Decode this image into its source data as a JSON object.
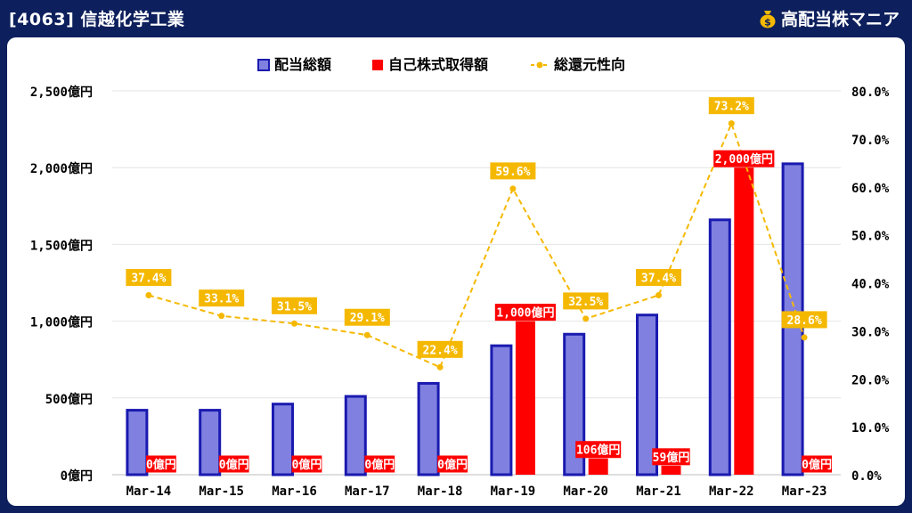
{
  "header": {
    "title": "[4063] 信越化学工業",
    "brand": "高配当株マニア",
    "brand_icon": "money-bag-icon"
  },
  "colors": {
    "header_bg": "#0d1f5c",
    "dividend": "#8080e0",
    "dividend_border": "#1a1ab0",
    "buyback": "#ff0000",
    "payout": "#f5b800",
    "label_text": "#ffffff",
    "axis_text": "#000000"
  },
  "chart_data": {
    "type": "bar",
    "categories": [
      "Mar-14",
      "Mar-15",
      "Mar-16",
      "Mar-17",
      "Mar-18",
      "Mar-19",
      "Mar-20",
      "Mar-21",
      "Mar-22",
      "Mar-23"
    ],
    "series": [
      {
        "name": "配当総額",
        "type": "bar",
        "axis": "left",
        "values": [
          420,
          420,
          460,
          510,
          595,
          840,
          915,
          1040,
          1660,
          2025
        ]
      },
      {
        "name": "自己株式取得額",
        "type": "bar",
        "axis": "left",
        "values": [
          0,
          0,
          0,
          0,
          0,
          1000,
          106,
          59,
          2000,
          0
        ],
        "labels": [
          "0億円",
          "0億円",
          "0億円",
          "0億円",
          "0億円",
          "1,000億円",
          "106億円",
          "59億円",
          "2,000億円",
          "0億円"
        ]
      },
      {
        "name": "総還元性向",
        "type": "line",
        "axis": "right",
        "values": [
          37.4,
          33.1,
          31.5,
          29.1,
          22.4,
          59.6,
          32.5,
          37.4,
          73.2,
          28.6
        ],
        "labels": [
          "37.4%",
          "33.1%",
          "31.5%",
          "29.1%",
          "22.4%",
          "59.6%",
          "32.5%",
          "37.4%",
          "73.2%",
          "28.6%"
        ]
      }
    ],
    "y_left": {
      "min": 0,
      "max": 2500,
      "ticks": [
        "0億円",
        "500億円",
        "1,000億円",
        "1,500億円",
        "2,000億円",
        "2,500億円"
      ]
    },
    "y_right": {
      "min": 0,
      "max": 80,
      "ticks": [
        "0.0%",
        "10.0%",
        "20.0%",
        "30.0%",
        "40.0%",
        "50.0%",
        "60.0%",
        "70.0%",
        "80.0%"
      ]
    },
    "legend_position": "top-center",
    "grid": true
  }
}
